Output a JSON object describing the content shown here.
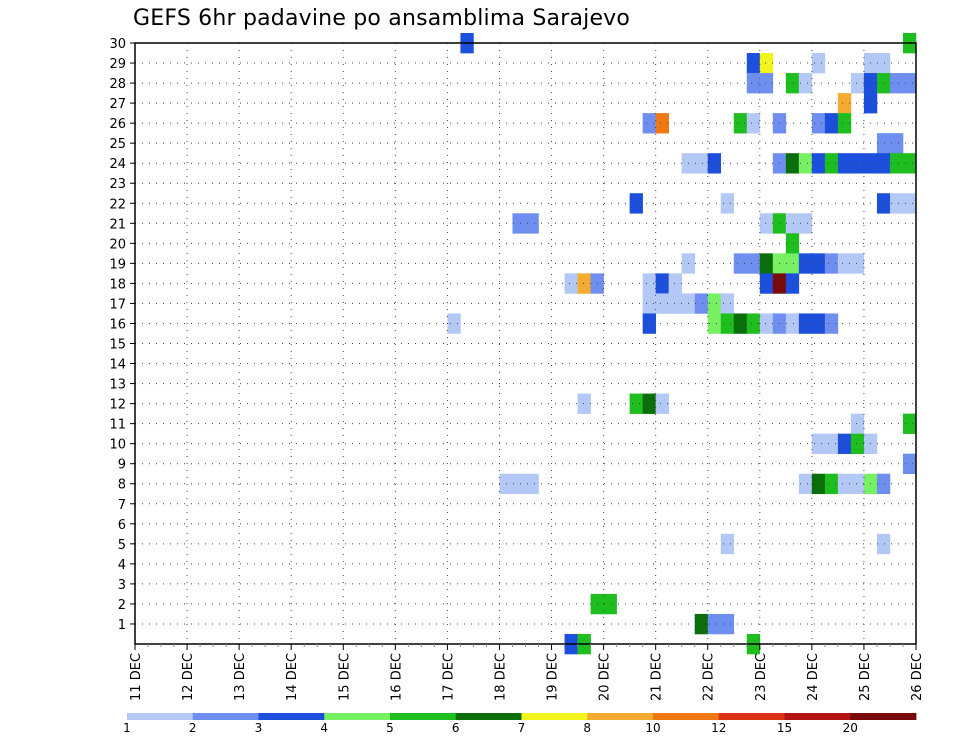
{
  "chart_data": {
    "type": "heatmap",
    "title": "GEFS 6hr padavine po ansamblima Sarajevo",
    "x_tick_labels": [
      "11 DEC",
      "12 DEC",
      "13 DEC",
      "14 DEC",
      "15 DEC",
      "16 DEC",
      "17 DEC",
      "18 DEC",
      "19 DEC",
      "20 DEC",
      "21 DEC",
      "22 DEC",
      "23 DEC",
      "24 DEC",
      "25 DEC",
      "26 DEC"
    ],
    "y_tick_labels": [
      "1",
      "2",
      "3",
      "4",
      "5",
      "6",
      "7",
      "8",
      "9",
      "10",
      "11",
      "12",
      "13",
      "14",
      "15",
      "16",
      "17",
      "18",
      "19",
      "20",
      "21",
      "22",
      "23",
      "24",
      "25",
      "26",
      "27",
      "28",
      "29",
      "30"
    ],
    "xlim": [
      0,
      60
    ],
    "ylim": [
      0,
      30
    ],
    "x_unit": "6-hour steps since 11 DEC 00Z",
    "grid": true,
    "colorbar": {
      "labels": [
        "1",
        "2",
        "3",
        "4",
        "5",
        "6",
        "7",
        "8",
        "10",
        "12",
        "15",
        "20"
      ],
      "colors": [
        "#b4c8f5",
        "#6e8ff0",
        "#1c4fdc",
        "#78f064",
        "#1ebe1e",
        "#0a6e0a",
        "#f5f51e",
        "#f5aa32",
        "#f07814",
        "#dc3214",
        "#b41414",
        "#780a0a"
      ]
    },
    "cells": [
      [
        25,
        30,
        3
      ],
      [
        59,
        30,
        5
      ],
      [
        47,
        29,
        3
      ],
      [
        48,
        29,
        7
      ],
      [
        52,
        29,
        1
      ],
      [
        56,
        29,
        1
      ],
      [
        57,
        29,
        1
      ],
      [
        47,
        28,
        2
      ],
      [
        48,
        28,
        2
      ],
      [
        50,
        28,
        5
      ],
      [
        51,
        28,
        1
      ],
      [
        55,
        28,
        1
      ],
      [
        56,
        28,
        3
      ],
      [
        57,
        28,
        5
      ],
      [
        58,
        28,
        2
      ],
      [
        59,
        28,
        2
      ],
      [
        54,
        27,
        8
      ],
      [
        56,
        27,
        3
      ],
      [
        39,
        26,
        2
      ],
      [
        40,
        26,
        9
      ],
      [
        46,
        26,
        5
      ],
      [
        47,
        26,
        1
      ],
      [
        49,
        26,
        2
      ],
      [
        52,
        26,
        2
      ],
      [
        53,
        26,
        3
      ],
      [
        54,
        26,
        5
      ],
      [
        57,
        25,
        2
      ],
      [
        58,
        25,
        2
      ],
      [
        42,
        24,
        1
      ],
      [
        43,
        24,
        1
      ],
      [
        44,
        24,
        3
      ],
      [
        49,
        24,
        2
      ],
      [
        50,
        24,
        6
      ],
      [
        51,
        24,
        4
      ],
      [
        52,
        24,
        3
      ],
      [
        53,
        24,
        5
      ],
      [
        54,
        24,
        3
      ],
      [
        55,
        24,
        3
      ],
      [
        56,
        24,
        3
      ],
      [
        57,
        24,
        3
      ],
      [
        58,
        24,
        5
      ],
      [
        59,
        24,
        5
      ],
      [
        38,
        22,
        3
      ],
      [
        45,
        22,
        1
      ],
      [
        57,
        22,
        3
      ],
      [
        58,
        22,
        1
      ],
      [
        59,
        22,
        1
      ],
      [
        29,
        21,
        2
      ],
      [
        30,
        21,
        2
      ],
      [
        48,
        21,
        1
      ],
      [
        49,
        21,
        5
      ],
      [
        50,
        21,
        1
      ],
      [
        51,
        21,
        1
      ],
      [
        50,
        20,
        5
      ],
      [
        42,
        19,
        1
      ],
      [
        46,
        19,
        2
      ],
      [
        47,
        19,
        2
      ],
      [
        48,
        19,
        6
      ],
      [
        49,
        19,
        4
      ],
      [
        50,
        19,
        4
      ],
      [
        51,
        19,
        3
      ],
      [
        52,
        19,
        3
      ],
      [
        53,
        19,
        2
      ],
      [
        54,
        19,
        1
      ],
      [
        55,
        19,
        1
      ],
      [
        33,
        18,
        1
      ],
      [
        34,
        18,
        8
      ],
      [
        35,
        18,
        2
      ],
      [
        39,
        18,
        1
      ],
      [
        40,
        18,
        3
      ],
      [
        41,
        18,
        1
      ],
      [
        48,
        18,
        3
      ],
      [
        49,
        18,
        12
      ],
      [
        50,
        18,
        3
      ],
      [
        39,
        17,
        1
      ],
      [
        40,
        17,
        1
      ],
      [
        41,
        17,
        1
      ],
      [
        42,
        17,
        1
      ],
      [
        43,
        17,
        2
      ],
      [
        44,
        17,
        4
      ],
      [
        45,
        17,
        1
      ],
      [
        24,
        16,
        1
      ],
      [
        39,
        16,
        3
      ],
      [
        44,
        16,
        4
      ],
      [
        45,
        16,
        5
      ],
      [
        46,
        16,
        6
      ],
      [
        47,
        16,
        5
      ],
      [
        48,
        16,
        1
      ],
      [
        49,
        16,
        2
      ],
      [
        50,
        16,
        1
      ],
      [
        51,
        16,
        3
      ],
      [
        52,
        16,
        3
      ],
      [
        53,
        16,
        2
      ],
      [
        34,
        12,
        1
      ],
      [
        38,
        12,
        5
      ],
      [
        39,
        12,
        6
      ],
      [
        40,
        12,
        1
      ],
      [
        55,
        11,
        1
      ],
      [
        59,
        11,
        5
      ],
      [
        52,
        10,
        1
      ],
      [
        53,
        10,
        1
      ],
      [
        54,
        10,
        3
      ],
      [
        55,
        10,
        5
      ],
      [
        56,
        10,
        1
      ],
      [
        59,
        9,
        2
      ],
      [
        28,
        8,
        1
      ],
      [
        29,
        8,
        1
      ],
      [
        30,
        8,
        1
      ],
      [
        51,
        8,
        1
      ],
      [
        52,
        8,
        6
      ],
      [
        53,
        8,
        5
      ],
      [
        54,
        8,
        1
      ],
      [
        55,
        8,
        1
      ],
      [
        56,
        8,
        4
      ],
      [
        57,
        8,
        2
      ],
      [
        45,
        5,
        1
      ],
      [
        57,
        5,
        1
      ],
      [
        35,
        2,
        5
      ],
      [
        36,
        2,
        5
      ],
      [
        43,
        1,
        6
      ],
      [
        44,
        1,
        2
      ],
      [
        45,
        1,
        2
      ],
      [
        33,
        0,
        3
      ],
      [
        34,
        0,
        5
      ],
      [
        47,
        0,
        5
      ]
    ]
  }
}
